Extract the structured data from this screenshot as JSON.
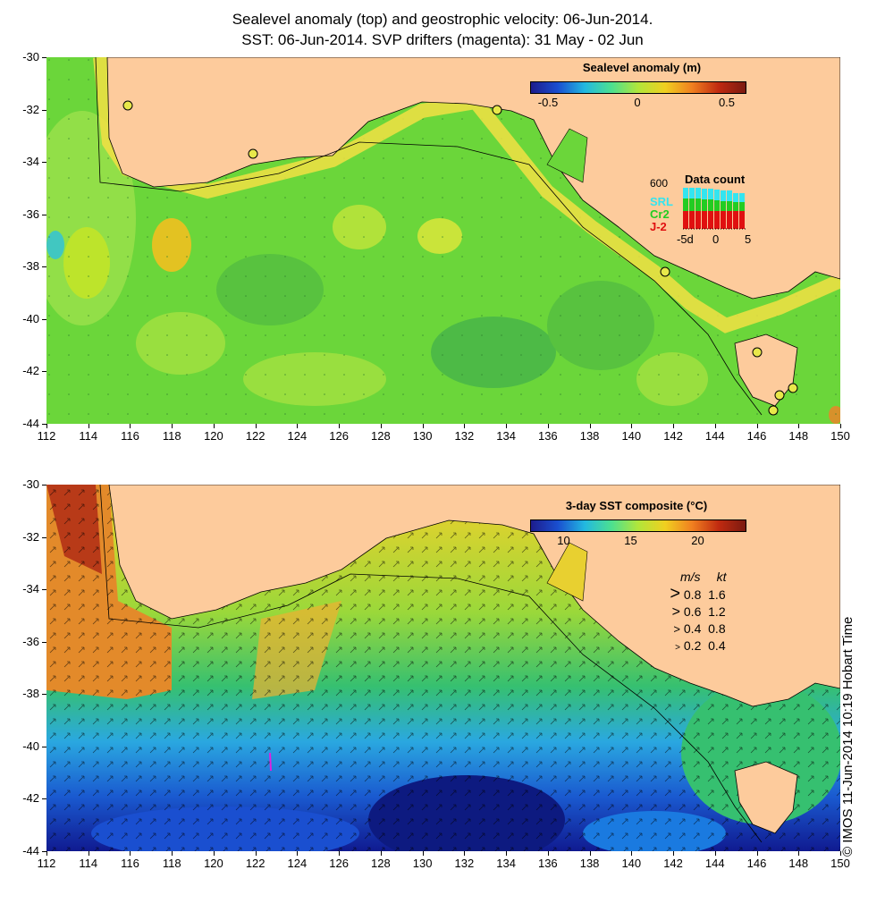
{
  "titles": {
    "line1": "Sealevel anomaly (top) and geostrophic velocity: 06-Jun-2014.",
    "line2": "SST: 06-Jun-2014. SVP drifters (magenta): 31 May - 02 Jun"
  },
  "map": {
    "lon_range": [
      112,
      150
    ],
    "lat_range": [
      -44,
      -30
    ],
    "x_ticks": [
      "112",
      "114",
      "116",
      "118",
      "120",
      "122",
      "124",
      "126",
      "128",
      "130",
      "132",
      "134",
      "136",
      "138",
      "140",
      "142",
      "144",
      "146",
      "148",
      "150"
    ],
    "y_ticks": [
      "-30",
      "-32",
      "-34",
      "-36",
      "-38",
      "-40",
      "-42",
      "-44"
    ],
    "colors": {
      "land": "#fdcb9c",
      "ocean_sla": "#6bd63a",
      "sst_warm": "#e38a2a",
      "sst_cold": "#1f2fa8"
    }
  },
  "top_panel": {
    "colorbar": {
      "title": "Sealevel anomaly (m)",
      "ticks": [
        "-0.5",
        "0",
        "0.5"
      ],
      "range": [
        -0.6,
        0.6
      ]
    },
    "data_count": {
      "title": "Data count",
      "max_label": "600",
      "series": [
        {
          "name": "SRL",
          "color": "#33e5f0"
        },
        {
          "name": "Cr2",
          "color": "#22cc22"
        },
        {
          "name": "J-2",
          "color": "#e01010"
        }
      ],
      "x_ticks": [
        "-5d",
        "0",
        "5"
      ]
    }
  },
  "bottom_panel": {
    "colorbar": {
      "title": "3-day SST composite (°C)",
      "ticks": [
        "10",
        "15",
        "20"
      ],
      "range": [
        7.5,
        23.5
      ]
    },
    "velocity_key": {
      "header_ms": "m/s",
      "header_kt": "kt",
      "rows": [
        {
          "ms": "0.8",
          "kt": "1.6"
        },
        {
          "ms": "0.6",
          "kt": "1.2"
        },
        {
          "ms": "0.4",
          "kt": "0.8"
        },
        {
          "ms": "0.2",
          "kt": "0.4"
        }
      ]
    }
  },
  "credit": "© IMOS 11-Jun-2014 10:19 Hobart Time"
}
